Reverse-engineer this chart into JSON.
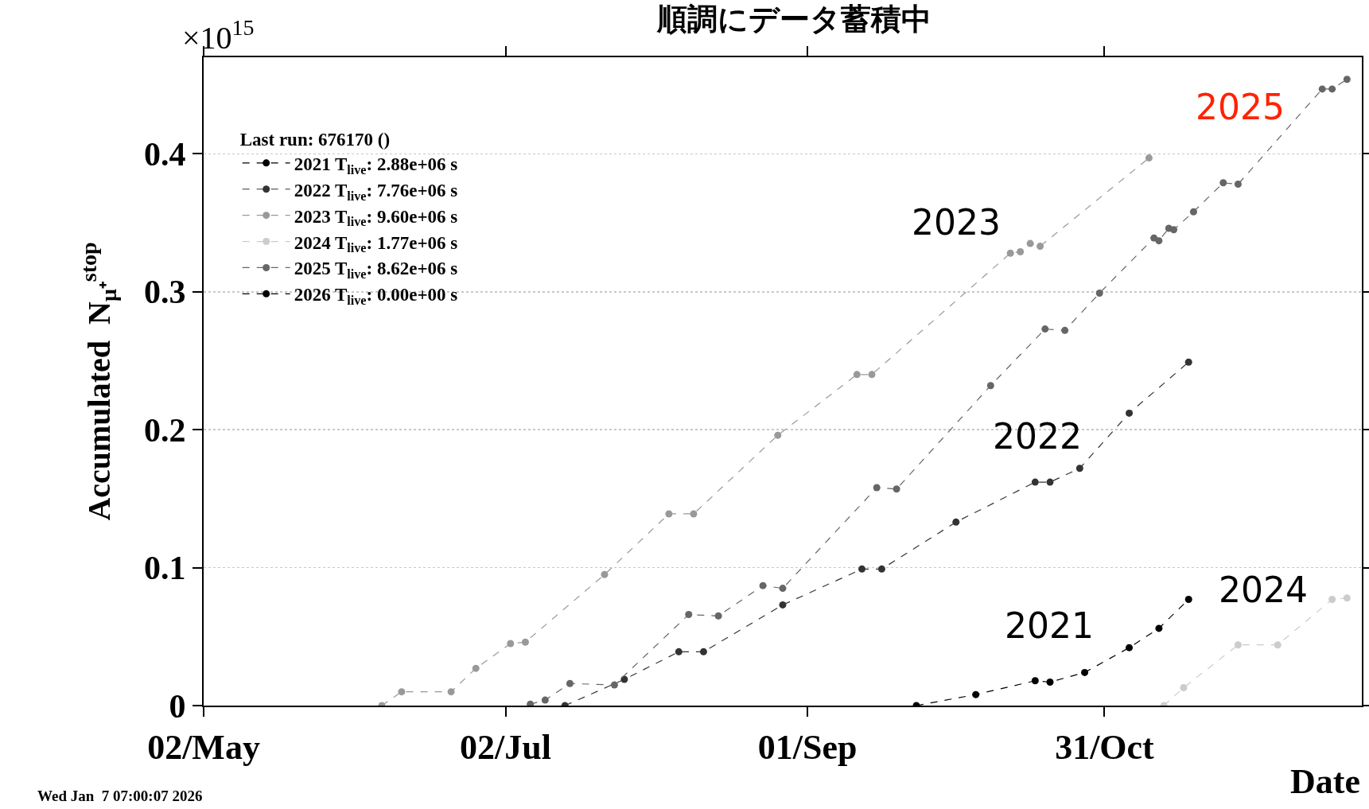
{
  "chart_data": {
    "type": "line",
    "title": "順調にデータ蓄積中",
    "xlabel": "Date",
    "ylabel": "Accumulated  N$_{μ⁺}$$^{stop}$",
    "legend_title": "Last run: 676170 ()",
    "xlim": [
      "--05-02",
      "--12-22"
    ],
    "xticks": [
      {
        "value": "--05-02",
        "label": "02/May"
      },
      {
        "value": "--07-02",
        "label": "02/Jul"
      },
      {
        "value": "--09-01",
        "label": "01/Sep"
      },
      {
        "value": "--10-31",
        "label": "31/Oct"
      }
    ],
    "ylim": [
      0,
      0.47
    ],
    "yticks": [
      0,
      0.1,
      0.2,
      0.3,
      0.4
    ],
    "grid": "y",
    "legend": "top left",
    "marker": "circle",
    "line_style": "dashed",
    "series": [
      {
        "name": "2021 T$_{live}$: 2.88e+06 s",
        "color": "#000000",
        "x": [
          "--09-23",
          "--10-05",
          "--10-17",
          "--10-20",
          "--10-27",
          "--11-05",
          "--11-11",
          "--11-17"
        ],
        "values": [
          0,
          0.008,
          0.018,
          0.017,
          0.024,
          0.042,
          0.056,
          0.077
        ]
      },
      {
        "name": "2022 T$_{live}$: 7.76e+06 s",
        "color": "#333333",
        "x": [
          "--07-14",
          "--07-26",
          "--08-06",
          "--08-11",
          "--08-27",
          "--09-12",
          "--09-16",
          "--10-01",
          "--10-17",
          "--10-20",
          "--10-26",
          "--11-05",
          "--11-17"
        ],
        "values": [
          0,
          0.019,
          0.039,
          0.039,
          0.073,
          0.099,
          0.099,
          0.133,
          0.162,
          0.162,
          0.172,
          0.212,
          0.249
        ]
      },
      {
        "name": "2023 T$_{live}$: 9.60e+06 s",
        "color": "#999999",
        "x": [
          "--06-07",
          "--06-11",
          "--06-21",
          "--06-26",
          "--07-03",
          "--07-06",
          "--07-22",
          "--08-04",
          "--08-09",
          "--08-26",
          "--09-11",
          "--09-14",
          "--10-12",
          "--10-14",
          "--10-16",
          "--10-18",
          "--11-09"
        ],
        "values": [
          0,
          0.01,
          0.01,
          0.027,
          0.045,
          0.046,
          0.095,
          0.139,
          0.139,
          0.196,
          0.24,
          0.24,
          0.328,
          0.329,
          0.335,
          0.333,
          0.397
        ]
      },
      {
        "name": "2024 T$_{live}$: 1.77e+06 s",
        "color": "#cccccc",
        "x": [
          "--11-12",
          "--11-16",
          "--11-27",
          "--12-05",
          "--12-16",
          "--12-19"
        ],
        "values": [
          0,
          0.013,
          0.044,
          0.044,
          0.077,
          0.078
        ]
      },
      {
        "name": "2025 T$_{live}$: 8.62e+06 s",
        "color": "#666666",
        "x": [
          "--07-07",
          "--07-10",
          "--07-15",
          "--07-24",
          "--08-08",
          "--08-14",
          "--08-23",
          "--08-27",
          "--09-15",
          "--09-19",
          "--10-08",
          "--10-19",
          "--10-23",
          "--10-30",
          "--11-10",
          "--11-11",
          "--11-13",
          "--11-14",
          "--11-18",
          "--11-24",
          "--11-27",
          "--12-14",
          "--12-16",
          "--12-19"
        ],
        "values": [
          0.001,
          0.004,
          0.016,
          0.015,
          0.066,
          0.065,
          0.087,
          0.085,
          0.158,
          0.157,
          0.232,
          0.273,
          0.272,
          0.299,
          0.339,
          0.337,
          0.346,
          0.345,
          0.358,
          0.379,
          0.378,
          0.447,
          0.447,
          0.454
        ]
      },
      {
        "name": "2026 T$_{live}$: 0.00e+00 s",
        "color": "#000000",
        "values": [
          null
        ]
      }
    ],
    "annotations": [
      {
        "text": "×10$^{15}$"
      },
      {
        "text": "Wed Jan  7 07:00:07 2026"
      },
      "2023",
      "2022",
      "2021",
      "2024",
      "2025"
    ]
  }
}
